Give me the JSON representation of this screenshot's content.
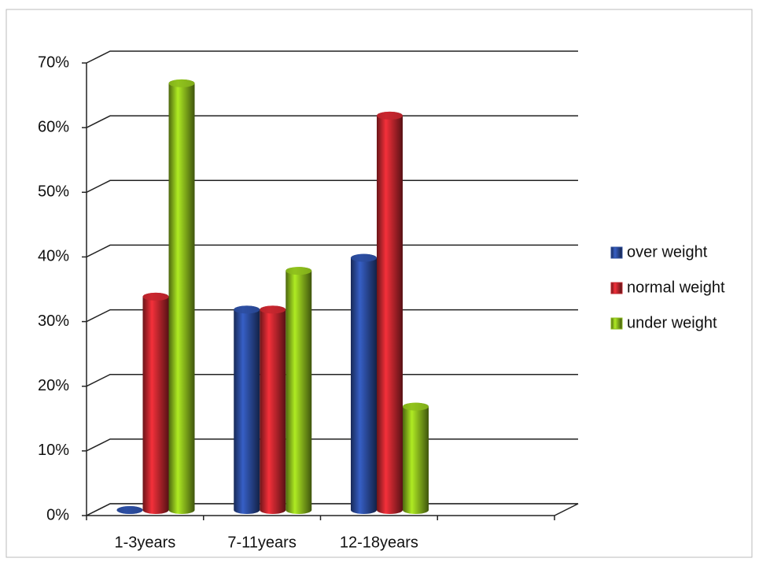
{
  "chart_data": {
    "type": "bar",
    "categories": [
      "1-3years",
      "7-11years",
      "12-18years",
      null
    ],
    "series": [
      {
        "name": "over weight",
        "color": "#2b4c9e",
        "values": [
          0,
          31,
          39,
          null
        ]
      },
      {
        "name": "normal weight",
        "color": "#c3262e",
        "values": [
          33,
          31,
          61,
          null
        ]
      },
      {
        "name": "under weight",
        "color": "#8cbc1c",
        "values": [
          66,
          37,
          16,
          null
        ]
      }
    ],
    "ylim": [
      0,
      70
    ],
    "yticks": [
      {
        "value": 0,
        "label": "0%"
      },
      {
        "value": 10,
        "label": "10%"
      },
      {
        "value": 20,
        "label": "20%"
      },
      {
        "value": 30,
        "label": "30%"
      },
      {
        "value": 40,
        "label": "40%"
      },
      {
        "value": 50,
        "label": "50%"
      },
      {
        "value": 60,
        "label": "60%"
      },
      {
        "value": 70,
        "label": "70%"
      }
    ],
    "grid": true,
    "legend": "right"
  }
}
